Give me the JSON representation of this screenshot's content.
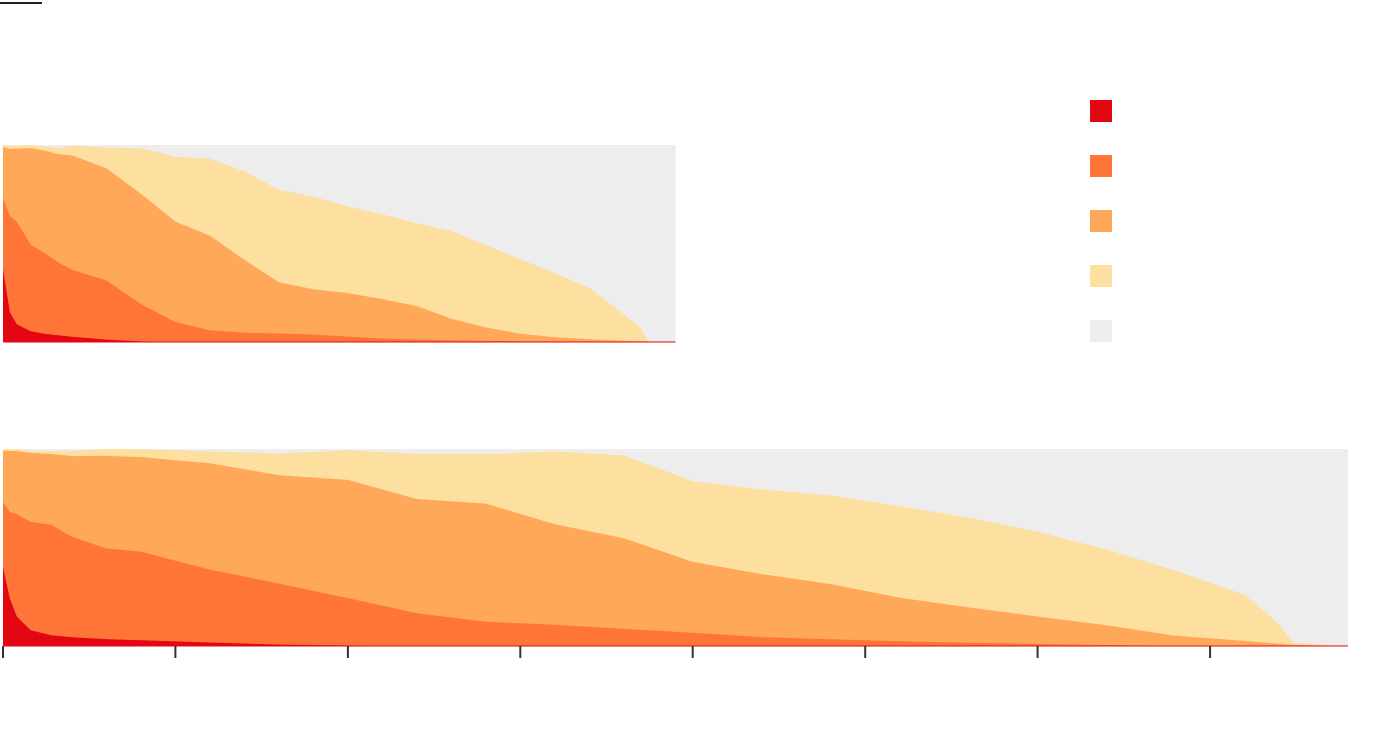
{
  "colors": {
    "band_1": "#e30613",
    "band_2": "#ff7538",
    "band_3": "#ffa85a",
    "band_4": "#fddf9f",
    "band_5": "#ededed",
    "axis": "#333333",
    "rule": "#222222"
  },
  "legend": {
    "items": [
      {
        "color": "#e30613",
        "label": ""
      },
      {
        "color": "#ff7538",
        "label": ""
      },
      {
        "color": "#ffa85a",
        "label": ""
      },
      {
        "color": "#fddf9f",
        "label": ""
      },
      {
        "color": "#ededed",
        "label": ""
      }
    ]
  },
  "chart_data": [
    {
      "type": "area",
      "stacked": true,
      "x_max": 1950,
      "panel_x_extent": 975,
      "ylim": [
        0,
        100
      ],
      "x": [
        0,
        10,
        20,
        40,
        60,
        80,
        100,
        150,
        200,
        250,
        300,
        350,
        400,
        450,
        500,
        550,
        600,
        650,
        700,
        750,
        800,
        850,
        900,
        925,
        935,
        975
      ],
      "series": [
        {
          "values": [
            37,
            15,
            9,
            5.5,
            4.2,
            3.4,
            2.7,
            1.2,
            0.3,
            0.1,
            0,
            0,
            0,
            0,
            0,
            0,
            0,
            0,
            0,
            0,
            0,
            0,
            0,
            0,
            0,
            0
          ]
        },
        {
          "values": [
            36,
            49,
            52,
            44,
            41,
            37,
            34,
            30,
            19,
            10,
            6,
            4.7,
            4.3,
            3.8,
            2.8,
            1.8,
            1.2,
            0.8,
            0.6,
            0.4,
            0.3,
            0.2,
            0.1,
            0.1,
            0,
            0
          ]
        },
        {
          "values": [
            26,
            34,
            37,
            49,
            52,
            55,
            58,
            57,
            56,
            51,
            48,
            37,
            26,
            23,
            22,
            20,
            17,
            11,
            6.8,
            3.8,
            2.2,
            1.2,
            0.5,
            0.3,
            0.3,
            0
          ]
        },
        {
          "values": [
            1,
            1.5,
            1.5,
            1.5,
            2,
            3,
            5,
            10.5,
            23,
            33,
            39,
            45,
            47,
            47,
            44,
            43,
            42,
            44.5,
            41.8,
            37.8,
            32.5,
            26,
            13.4,
            6.6,
            0.1,
            0
          ]
        }
      ]
    },
    {
      "type": "area",
      "stacked": true,
      "x_max": 1950,
      "panel_x_extent": 1950,
      "ylim": [
        0,
        100
      ],
      "x": [
        0,
        10,
        20,
        40,
        70,
        100,
        150,
        200,
        300,
        400,
        500,
        600,
        700,
        800,
        900,
        1000,
        1100,
        1200,
        1300,
        1400,
        1500,
        1600,
        1700,
        1800,
        1850,
        1870,
        1950
      ],
      "series": [
        {
          "values": [
            40,
            24,
            15,
            8,
            5.5,
            4.4,
            3.5,
            2.9,
            1.8,
            0.7,
            0.3,
            0.1,
            0,
            0,
            0,
            0,
            0,
            0,
            0,
            0,
            0,
            0,
            0,
            0,
            0,
            0,
            0
          ]
        },
        {
          "values": [
            33,
            44,
            52,
            55,
            56,
            51,
            46,
            45,
            37,
            31,
            24,
            16.5,
            12.3,
            10.8,
            8.7,
            6.7,
            4.5,
            3.4,
            2.5,
            1.6,
            1,
            0.5,
            0.2,
            0.1,
            0.1,
            0,
            0
          ]
        },
        {
          "values": [
            26,
            31,
            32,
            35,
            36,
            41,
            47,
            48,
            54,
            55,
            60,
            58,
            60,
            51,
            46,
            36,
            32,
            28,
            22,
            18,
            14,
            10,
            5,
            2.5,
            1,
            0.6,
            0
          ]
        },
        {
          "values": [
            1,
            1,
            1,
            1,
            1.5,
            2.6,
            3.5,
            4,
            6,
            11,
            15,
            23,
            25,
            37,
            42,
            41,
            43,
            45,
            46.5,
            45.6,
            43,
            38.5,
            33,
            23.4,
            10,
            0.9,
            0
          ]
        }
      ]
    }
  ],
  "x_axis": {
    "ticks": [
      0,
      250,
      500,
      750,
      1000,
      1250,
      1500,
      1750
    ]
  }
}
